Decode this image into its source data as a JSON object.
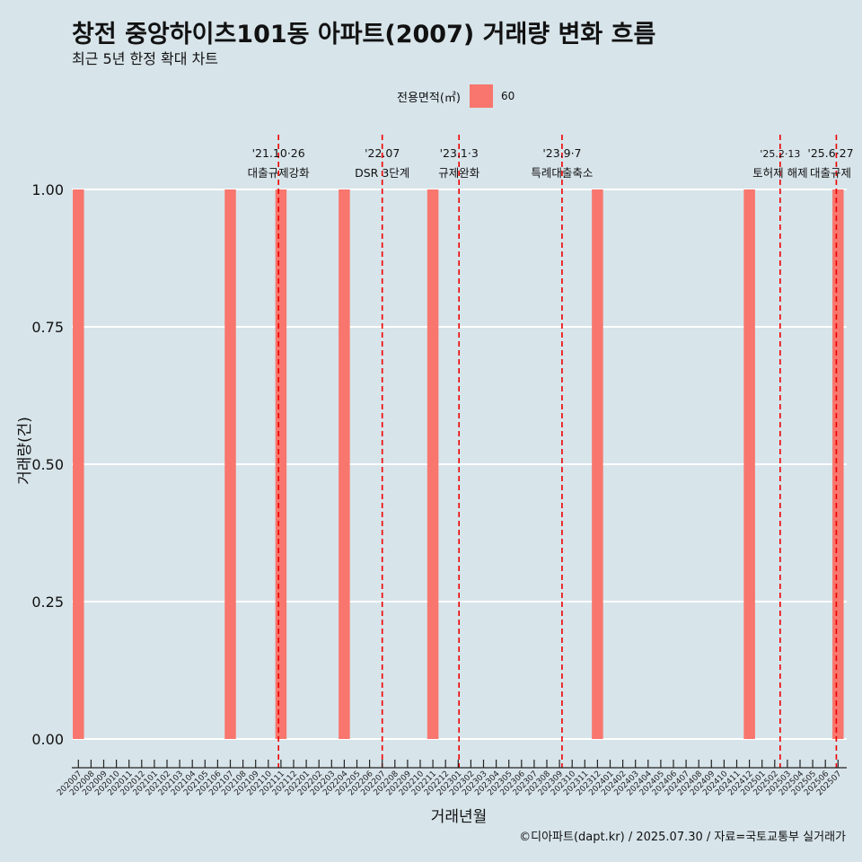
{
  "header": {
    "title": "창전 중앙하이츠101동 아파트(2007) 거래량 변화 흐름",
    "subtitle": "최근 5년 한정 확대 차트"
  },
  "legend": {
    "title": "전용면적(㎡)",
    "items": [
      {
        "label": "60",
        "color": "#f8766d"
      }
    ]
  },
  "caption": "©디아파트(dapt.kr) / 2025.07.30 / 자료=국토교통부 실거래가",
  "colors": {
    "background": "#d7e4ea",
    "bar": "#f8766d",
    "event_line": "#ee0000",
    "grid": "#ffffff"
  },
  "chart_data": {
    "type": "bar",
    "xlabel": "거래년월",
    "ylabel": "거래량(건)",
    "ylim": [
      0,
      1
    ],
    "yticks": [
      "0.00",
      "0.25",
      "0.50",
      "0.75",
      "1.00"
    ],
    "categories": [
      "202007",
      "202008",
      "202009",
      "202010",
      "202011",
      "202012",
      "202101",
      "202102",
      "202103",
      "202104",
      "202105",
      "202106",
      "202107",
      "202108",
      "202109",
      "202110",
      "202111",
      "202112",
      "202201",
      "202202",
      "202203",
      "202204",
      "202205",
      "202206",
      "202207",
      "202208",
      "202209",
      "202210",
      "202211",
      "202212",
      "202301",
      "202302",
      "202303",
      "202304",
      "202305",
      "202306",
      "202307",
      "202308",
      "202309",
      "202310",
      "202311",
      "202312",
      "202401",
      "202402",
      "202403",
      "202404",
      "202405",
      "202406",
      "202407",
      "202408",
      "202409",
      "202410",
      "202411",
      "202412",
      "202501",
      "202502",
      "202503",
      "202504",
      "202505",
      "202506",
      "202507"
    ],
    "series": [
      {
        "name": "60",
        "values": [
          1,
          0,
          0,
          0,
          0,
          0,
          0,
          0,
          0,
          0,
          0,
          0,
          1,
          0,
          0,
          0,
          1,
          0,
          0,
          0,
          0,
          1,
          0,
          0,
          0,
          0,
          0,
          0,
          1,
          0,
          0,
          0,
          0,
          0,
          0,
          0,
          0,
          0,
          0,
          0,
          0,
          1,
          0,
          0,
          0,
          0,
          0,
          0,
          0,
          0,
          0,
          0,
          0,
          1,
          0,
          0,
          0,
          0,
          0,
          0,
          1
        ]
      }
    ],
    "events": [
      {
        "date": "2021-10-26",
        "label": "'21.10·26",
        "desc": "대출규제강화"
      },
      {
        "date": "2022-07-01",
        "label": "'22.07",
        "desc": "DSR 3단계"
      },
      {
        "date": "2023-01-03",
        "label": "'23.1·3",
        "desc": "규제완화"
      },
      {
        "date": "2023-09-07",
        "label": "'23.9·7",
        "desc": "특례대출축소"
      },
      {
        "date": "2025-02-13",
        "label": "'25.2·13",
        "desc": "토허제 해제"
      },
      {
        "date": "2025-06-27",
        "label": "'25.6·27",
        "desc": "대출규제"
      }
    ]
  }
}
